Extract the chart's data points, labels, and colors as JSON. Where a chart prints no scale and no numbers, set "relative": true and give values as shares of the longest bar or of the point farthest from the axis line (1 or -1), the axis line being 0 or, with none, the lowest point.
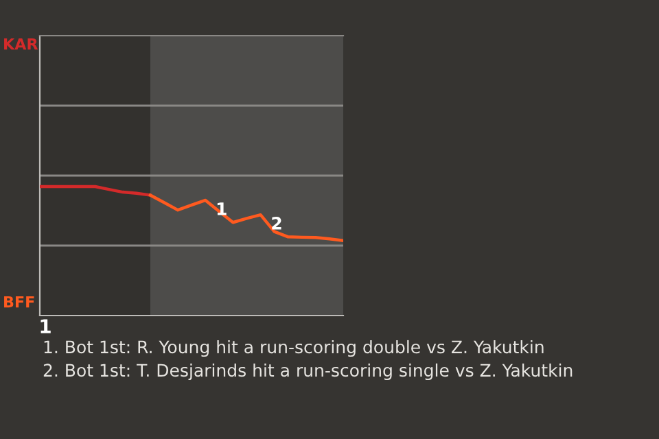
{
  "chart_data": {
    "type": "line",
    "relative": true,
    "categories": [
      null,
      null,
      null,
      null,
      null,
      null,
      null,
      null,
      null,
      null,
      null,
      null,
      null,
      null,
      null,
      null,
      null,
      null,
      null,
      null,
      null,
      null,
      null
    ],
    "series": [
      {
        "color": "#d42a2a",
        "values": [
          1,
          1,
          1,
          1,
          1,
          0.978,
          0.957,
          0.948,
          0.933,
          null,
          null,
          null,
          null,
          null,
          null,
          null,
          null,
          null,
          null,
          null,
          null,
          null,
          null
        ]
      },
      {
        "color": "#ff5a1f",
        "values": [
          null,
          null,
          null,
          null,
          null,
          null,
          null,
          null,
          0.933,
          0.876,
          0.818,
          0.857,
          0.894,
          0.807,
          0.722,
          0.753,
          0.781,
          0.651,
          0.61,
          0.607,
          0.605,
          0.594,
          0.581
        ]
      }
    ],
    "ref_lines": [
      {
        "axis": "y",
        "value": 0.5425,
        "color": "#8a8885"
      },
      {
        "axis": "y",
        "value": 1.085,
        "color": "#8a8885"
      },
      {
        "axis": "y",
        "value": 1.6275,
        "color": "#8a8885"
      }
    ],
    "annotations": [
      "KAR",
      "BFF",
      "1",
      {
        "text": "1",
        "y": 0.722
      },
      {
        "text": "2",
        "y": 0.61
      },
      "1. Bot 1st: R. Young hit a run-scoring double vs Z. Yakutkin",
      "2. Bot 1st: T. Desjarinds hit a run-scoring single vs Z. Yakutkin"
    ]
  }
}
